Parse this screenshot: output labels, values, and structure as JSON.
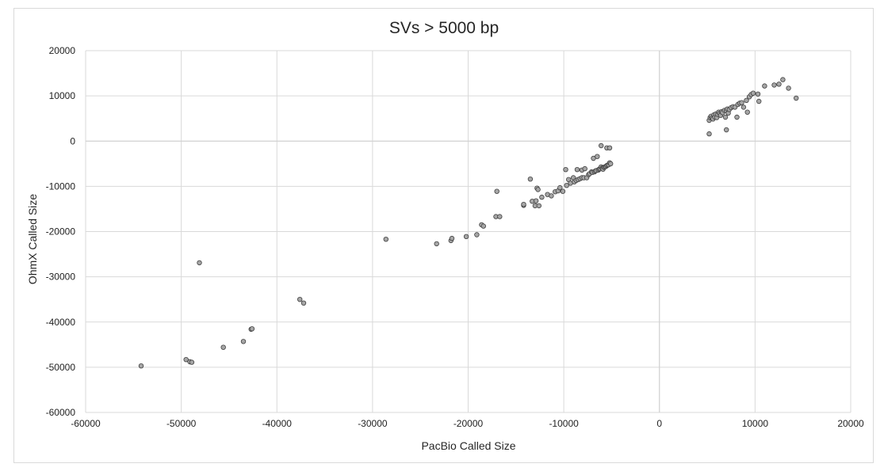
{
  "chart_data": {
    "type": "scatter",
    "title": "SVs > 5000 bp",
    "xlabel": "PacBio Called Size",
    "ylabel": "OhmX Called Size",
    "xlim": [
      -60000,
      20000
    ],
    "ylim": [
      -60000,
      20000
    ],
    "xticks": [
      -60000,
      -50000,
      -40000,
      -30000,
      -20000,
      -10000,
      0,
      10000,
      20000
    ],
    "yticks": [
      -60000,
      -50000,
      -40000,
      -30000,
      -20000,
      -10000,
      0,
      10000,
      20000
    ],
    "xtick_labels": [
      "-60000",
      "-50000",
      "-40000",
      "-30000",
      "-20000",
      "-10000",
      "0",
      "10000",
      "20000"
    ],
    "ytick_labels": [
      "-60000",
      "-50000",
      "-40000",
      "-30000",
      "-20000",
      "-10000",
      "0",
      "10000",
      "20000"
    ],
    "grid": true,
    "legend": "none",
    "marker_color": "#a6a6a6",
    "marker_edge_color": "#404040",
    "points": [
      [
        -54200,
        -49700
      ],
      [
        -49500,
        -48300
      ],
      [
        -49100,
        -48800
      ],
      [
        -48900,
        -48900
      ],
      [
        -48100,
        -26900
      ],
      [
        -45600,
        -45600
      ],
      [
        -43500,
        -44300
      ],
      [
        -42700,
        -41600
      ],
      [
        -42600,
        -41500
      ],
      [
        -37600,
        -35000
      ],
      [
        -37200,
        -35800
      ],
      [
        -28600,
        -21700
      ],
      [
        -23300,
        -22700
      ],
      [
        -21800,
        -22000
      ],
      [
        -21700,
        -21500
      ],
      [
        -20200,
        -21100
      ],
      [
        -19100,
        -20700
      ],
      [
        -18600,
        -18500
      ],
      [
        -18400,
        -18800
      ],
      [
        -17100,
        -16700
      ],
      [
        -17000,
        -11100
      ],
      [
        -16700,
        -16700
      ],
      [
        -14200,
        -14200
      ],
      [
        -14200,
        -14000
      ],
      [
        -13500,
        -8400
      ],
      [
        -13300,
        -13300
      ],
      [
        -13000,
        -14300
      ],
      [
        -12900,
        -13200
      ],
      [
        -12800,
        -10400
      ],
      [
        -12700,
        -10700
      ],
      [
        -12600,
        -14300
      ],
      [
        -12300,
        -12400
      ],
      [
        -11700,
        -11800
      ],
      [
        -11300,
        -12100
      ],
      [
        -10900,
        -11200
      ],
      [
        -10600,
        -11000
      ],
      [
        -10400,
        -10300
      ],
      [
        -10100,
        -11100
      ],
      [
        -9800,
        -6300
      ],
      [
        -9700,
        -9800
      ],
      [
        -9500,
        -8500
      ],
      [
        -9300,
        -9300
      ],
      [
        -9000,
        -8100
      ],
      [
        -8900,
        -9000
      ],
      [
        -8700,
        -8700
      ],
      [
        -8600,
        -6300
      ],
      [
        -8500,
        -8500
      ],
      [
        -8300,
        -8300
      ],
      [
        -8100,
        -8100
      ],
      [
        -8100,
        -6400
      ],
      [
        -7900,
        -8100
      ],
      [
        -7800,
        -6100
      ],
      [
        -7600,
        -8100
      ],
      [
        -7400,
        -7400
      ],
      [
        -7300,
        -7200
      ],
      [
        -7100,
        -6800
      ],
      [
        -7000,
        -6900
      ],
      [
        -6900,
        -3800
      ],
      [
        -6800,
        -6800
      ],
      [
        -6700,
        -6600
      ],
      [
        -6600,
        -6500
      ],
      [
        -6500,
        -3400
      ],
      [
        -6400,
        -6400
      ],
      [
        -6300,
        -6200
      ],
      [
        -6200,
        -6100
      ],
      [
        -6100,
        -5700
      ],
      [
        -6100,
        -1000
      ],
      [
        -6000,
        -6000
      ],
      [
        -5900,
        -5900
      ],
      [
        -5900,
        -6200
      ],
      [
        -5800,
        -5800
      ],
      [
        -5700,
        -5700
      ],
      [
        -5600,
        -5600
      ],
      [
        -5500,
        -5400
      ],
      [
        -5500,
        -1500
      ],
      [
        -5400,
        -5300
      ],
      [
        -5300,
        -5200
      ],
      [
        -5200,
        -4800
      ],
      [
        -5200,
        -1500
      ],
      [
        -5100,
        -5000
      ],
      [
        5200,
        1600
      ],
      [
        5200,
        4600
      ],
      [
        5300,
        5200
      ],
      [
        5400,
        5500
      ],
      [
        5500,
        5100
      ],
      [
        5600,
        4900
      ],
      [
        5700,
        5800
      ],
      [
        5800,
        5300
      ],
      [
        5900,
        6000
      ],
      [
        6000,
        5200
      ],
      [
        6100,
        5900
      ],
      [
        6200,
        6400
      ],
      [
        6300,
        6100
      ],
      [
        6400,
        5700
      ],
      [
        6500,
        6500
      ],
      [
        6600,
        6300
      ],
      [
        6800,
        6800
      ],
      [
        6900,
        5300
      ],
      [
        7000,
        2500
      ],
      [
        7000,
        6700
      ],
      [
        7100,
        7100
      ],
      [
        7200,
        6200
      ],
      [
        7300,
        7000
      ],
      [
        7500,
        7400
      ],
      [
        7700,
        7600
      ],
      [
        7900,
        7500
      ],
      [
        8100,
        5300
      ],
      [
        8200,
        8100
      ],
      [
        8400,
        8400
      ],
      [
        8600,
        8500
      ],
      [
        8800,
        7500
      ],
      [
        9100,
        9000
      ],
      [
        9200,
        6400
      ],
      [
        9400,
        9800
      ],
      [
        9600,
        10300
      ],
      [
        9800,
        10600
      ],
      [
        10300,
        10400
      ],
      [
        10400,
        8800
      ],
      [
        11000,
        12200
      ],
      [
        12000,
        12400
      ],
      [
        12500,
        12600
      ],
      [
        12900,
        13600
      ],
      [
        13500,
        11700
      ],
      [
        14300,
        9500
      ]
    ]
  }
}
